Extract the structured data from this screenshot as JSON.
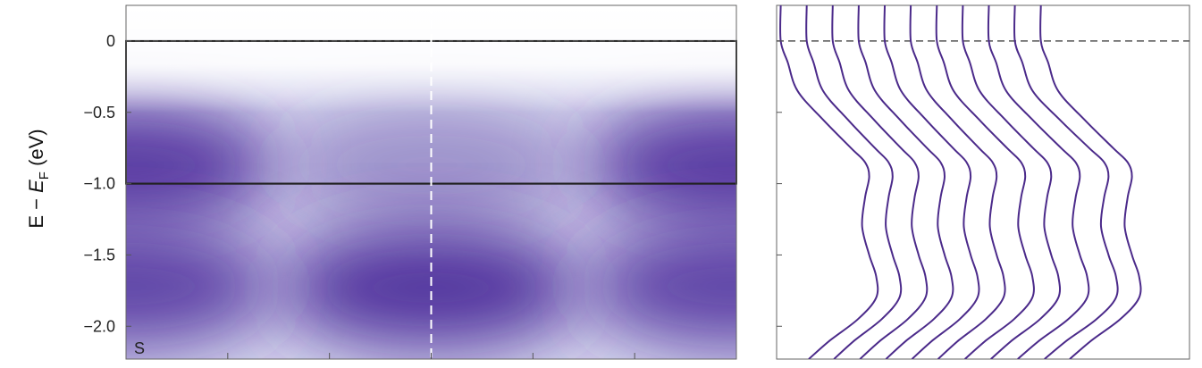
{
  "chart_data": [
    {
      "type": "heatmap",
      "panel_label": "S",
      "ylabel": {
        "prefix": "E − ",
        "var": "E",
        "sub": "F",
        "suffix": " (eV)"
      },
      "ylim": [
        -2.23,
        0.25
      ],
      "yticks": [
        0,
        -0.5,
        -1.0,
        -1.5,
        -2.0
      ],
      "ytick_labels": [
        "0",
        "−0.5",
        "−1.0",
        "−1.5",
        "−2.0"
      ],
      "x_tick_marks": 5,
      "reference_lines": [
        {
          "y": 0,
          "style": "dashed",
          "color": "#444444"
        },
        {
          "y": -1.0,
          "style": "solid",
          "color": "#222222"
        }
      ],
      "highlight_box": {
        "y_top": 0,
        "y_bottom": -1.0,
        "color": "#222222"
      },
      "vertical_dashed_line": {
        "x_fraction": 0.5,
        "color": "#ffffff"
      },
      "colormap": [
        "#ffffff",
        "#4b2a9a"
      ],
      "intensity_features": [
        {
          "x": 0.0,
          "y": -0.87,
          "amp": 0.95
        },
        {
          "x": 1.0,
          "y": -0.87,
          "amp": 0.95
        },
        {
          "x": 0.5,
          "y": -0.87,
          "amp": 0.45
        },
        {
          "x": 0.5,
          "y": -1.73,
          "amp": 1.0
        },
        {
          "x": 0.0,
          "y": -1.72,
          "amp": 0.9
        },
        {
          "x": 1.0,
          "y": -1.72,
          "amp": 0.9
        }
      ]
    },
    {
      "type": "line",
      "title": "",
      "xlabel": "",
      "ylabel": "",
      "ylim": [
        -2.23,
        0.25
      ],
      "yticks": [
        0,
        -0.5,
        -1.0,
        -1.5,
        -2.0
      ],
      "reference_lines": [
        {
          "y": 0,
          "style": "dashed",
          "color": "#555555"
        }
      ],
      "line_color": "#4b2a8a",
      "curve_profile": {
        "e": [
          0.25,
          0.0,
          -0.15,
          -0.35,
          -0.55,
          -0.75,
          -0.85,
          -0.95,
          -1.1,
          -1.3,
          -1.5,
          -1.65,
          -1.8,
          -1.95,
          -2.1,
          -2.23
        ],
        "offset_fraction": [
          0.0,
          0.0,
          0.05,
          0.12,
          0.3,
          0.5,
          0.6,
          0.63,
          0.6,
          0.58,
          0.63,
          0.68,
          0.68,
          0.55,
          0.35,
          0.2
        ]
      },
      "series_count": 11,
      "series_top_x_fraction": [
        0.0,
        0.063,
        0.126,
        0.189,
        0.252,
        0.315,
        0.378,
        0.441,
        0.504,
        0.567,
        0.63
      ],
      "series_amplitude_fraction": [
        0.34,
        0.33,
        0.33,
        0.33,
        0.33,
        0.33,
        0.34,
        0.34,
        0.35,
        0.36,
        0.35
      ]
    }
  ]
}
